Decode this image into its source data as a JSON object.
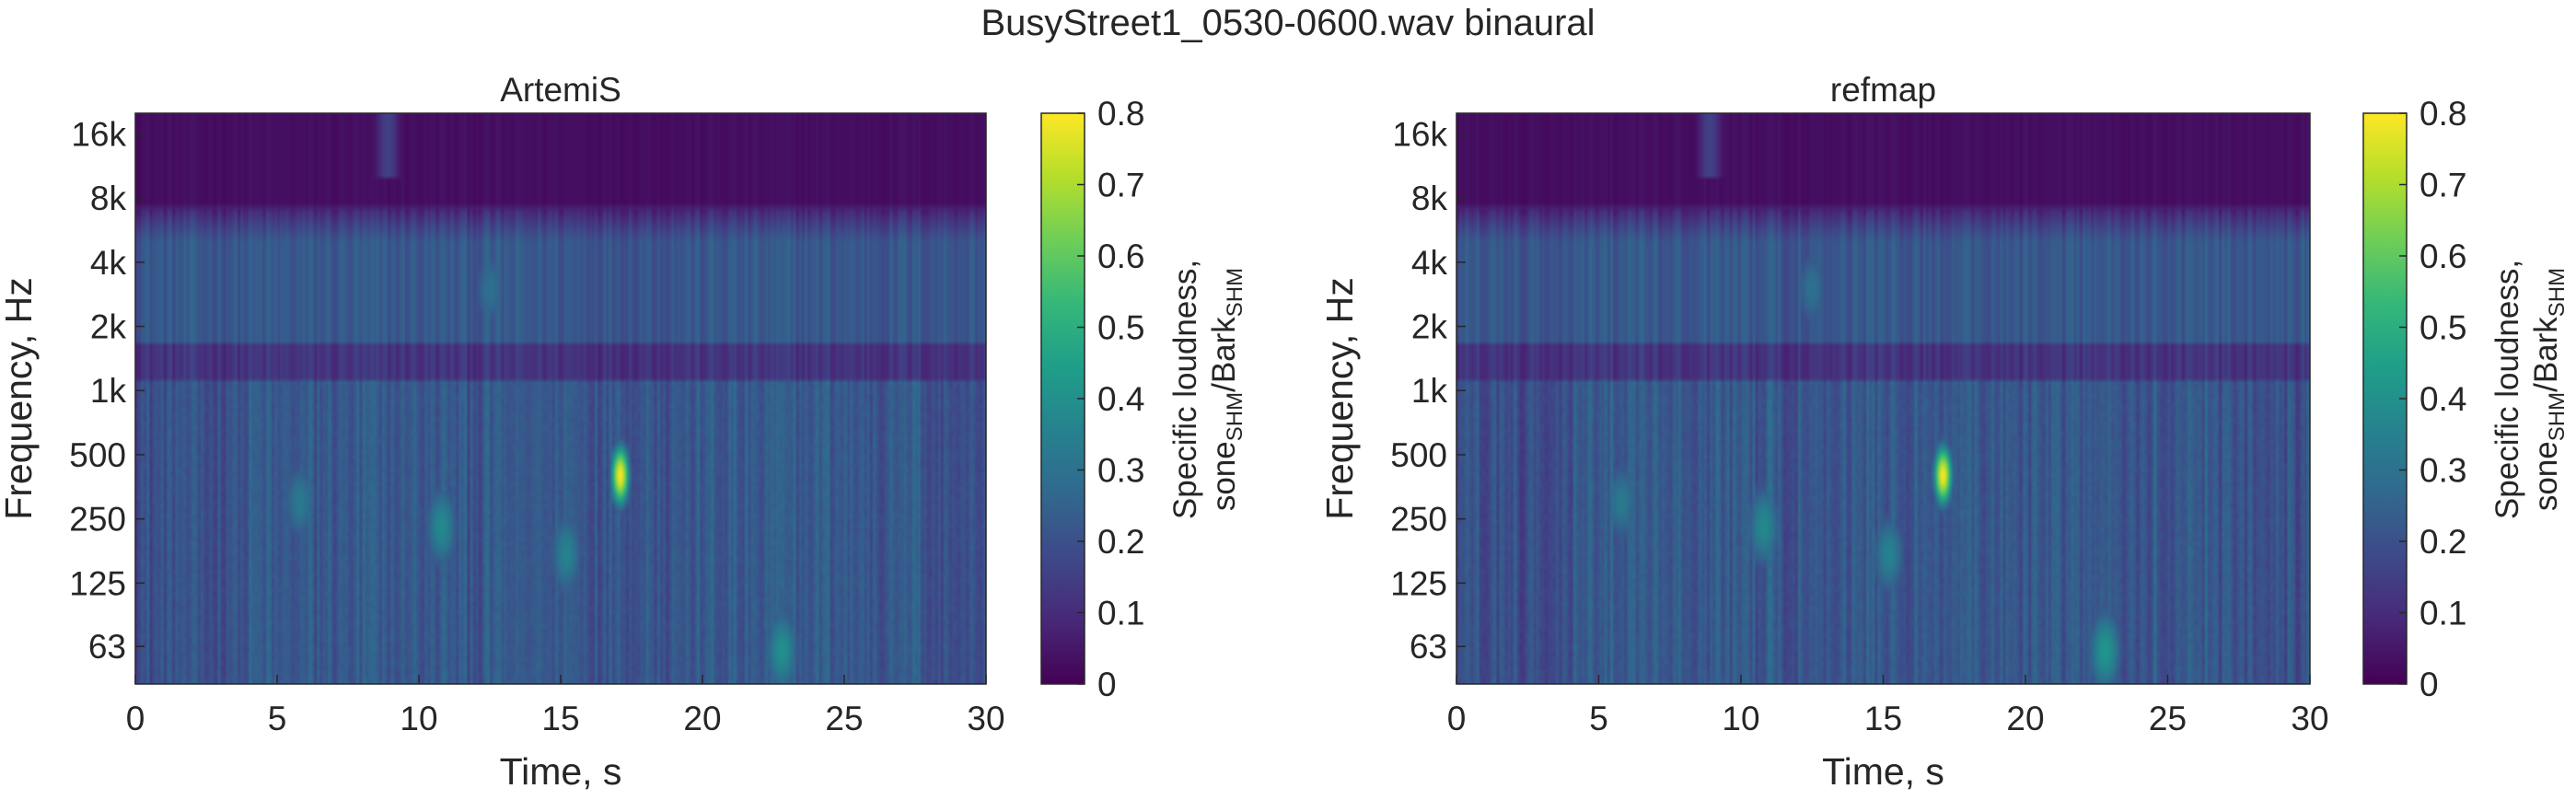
{
  "figure": {
    "title": "BusyStreet1_0530-0600.wav binaural"
  },
  "colormap": {
    "name": "viridis",
    "stops": [
      "#440154",
      "#482878",
      "#3e4989",
      "#31688e",
      "#26828e",
      "#1f9e89",
      "#35b779",
      "#6ece58",
      "#b5de2b",
      "#fde725"
    ]
  },
  "chart_data": [
    {
      "type": "heatmap",
      "title": "ArtemiS",
      "xlabel": "Time, s",
      "ylabel": "Frequency, Hz",
      "xlim": [
        0,
        30
      ],
      "x_ticks": [
        0,
        5,
        10,
        15,
        20,
        25,
        30
      ],
      "y_scale": "log",
      "y_ticks": [
        {
          "value": 63,
          "label": "63"
        },
        {
          "value": 125,
          "label": "125"
        },
        {
          "value": 250,
          "label": "250"
        },
        {
          "value": 500,
          "label": "500"
        },
        {
          "value": 1000,
          "label": "1k"
        },
        {
          "value": 2000,
          "label": "2k"
        },
        {
          "value": 4000,
          "label": "4k"
        },
        {
          "value": 8000,
          "label": "8k"
        },
        {
          "value": 16000,
          "label": "16k"
        }
      ],
      "colorbar": {
        "label_prefix": "Specific loudness,",
        "label_unit_a": "sone",
        "label_unit_sub_a": "SHM",
        "label_unit_b": "/Bark",
        "label_unit_sub_b": "SHM",
        "clim": [
          0,
          0.8
        ],
        "ticks": [
          "0",
          "0.1",
          "0.2",
          "0.3",
          "0.4",
          "0.5",
          "0.6",
          "0.7",
          "0.8"
        ]
      },
      "features": [
        {
          "time_s": 17.1,
          "freq_hz": 400,
          "value": 0.8,
          "note": "peak"
        },
        {
          "time_s": 10.8,
          "freq_hz": 230,
          "value": 0.38
        },
        {
          "time_s": 5.8,
          "freq_hz": 300,
          "value": 0.33
        },
        {
          "time_s": 15.2,
          "freq_hz": 170,
          "value": 0.36
        },
        {
          "time_s": 22.8,
          "freq_hz": 60,
          "value": 0.4
        },
        {
          "time_s": 12.5,
          "freq_hz": 3000,
          "value": 0.3
        }
      ],
      "bands": [
        {
          "freq_range_hz": [
            7000,
            20000
          ],
          "value": 0.03
        },
        {
          "freq_range_hz": [
            1100,
            1700
          ],
          "value": 0.12
        },
        {
          "freq_range_hz": [
            1700,
            6000
          ],
          "value": 0.22
        },
        {
          "freq_range_hz": [
            40,
            1100
          ],
          "value": 0.2
        }
      ]
    },
    {
      "type": "heatmap",
      "title": "refmap",
      "xlabel": "Time, s",
      "ylabel": "Frequency, Hz",
      "xlim": [
        0,
        30
      ],
      "x_ticks": [
        0,
        5,
        10,
        15,
        20,
        25,
        30
      ],
      "y_scale": "log",
      "y_ticks": [
        {
          "value": 63,
          "label": "63"
        },
        {
          "value": 125,
          "label": "125"
        },
        {
          "value": 250,
          "label": "250"
        },
        {
          "value": 500,
          "label": "500"
        },
        {
          "value": 1000,
          "label": "1k"
        },
        {
          "value": 2000,
          "label": "2k"
        },
        {
          "value": 4000,
          "label": "4k"
        },
        {
          "value": 8000,
          "label": "8k"
        },
        {
          "value": 16000,
          "label": "16k"
        }
      ],
      "colorbar": {
        "label_prefix": "Specific loudness,",
        "label_unit_a": "sone",
        "label_unit_sub_a": "SHM",
        "label_unit_b": "/Bark",
        "label_unit_sub_b": "SHM",
        "clim": [
          0,
          0.8
        ],
        "ticks": [
          "0",
          "0.1",
          "0.2",
          "0.3",
          "0.4",
          "0.5",
          "0.6",
          "0.7",
          "0.8"
        ]
      },
      "features": [
        {
          "time_s": 17.1,
          "freq_hz": 400,
          "value": 0.8,
          "note": "peak"
        },
        {
          "time_s": 10.8,
          "freq_hz": 230,
          "value": 0.38
        },
        {
          "time_s": 5.8,
          "freq_hz": 300,
          "value": 0.33
        },
        {
          "time_s": 15.2,
          "freq_hz": 170,
          "value": 0.36
        },
        {
          "time_s": 22.8,
          "freq_hz": 60,
          "value": 0.42
        },
        {
          "time_s": 12.5,
          "freq_hz": 3000,
          "value": 0.3
        }
      ],
      "bands": [
        {
          "freq_range_hz": [
            7000,
            20000
          ],
          "value": 0.03
        },
        {
          "freq_range_hz": [
            1100,
            1700
          ],
          "value": 0.12
        },
        {
          "freq_range_hz": [
            1700,
            6000
          ],
          "value": 0.22
        },
        {
          "freq_range_hz": [
            40,
            1100
          ],
          "value": 0.2
        }
      ]
    }
  ]
}
